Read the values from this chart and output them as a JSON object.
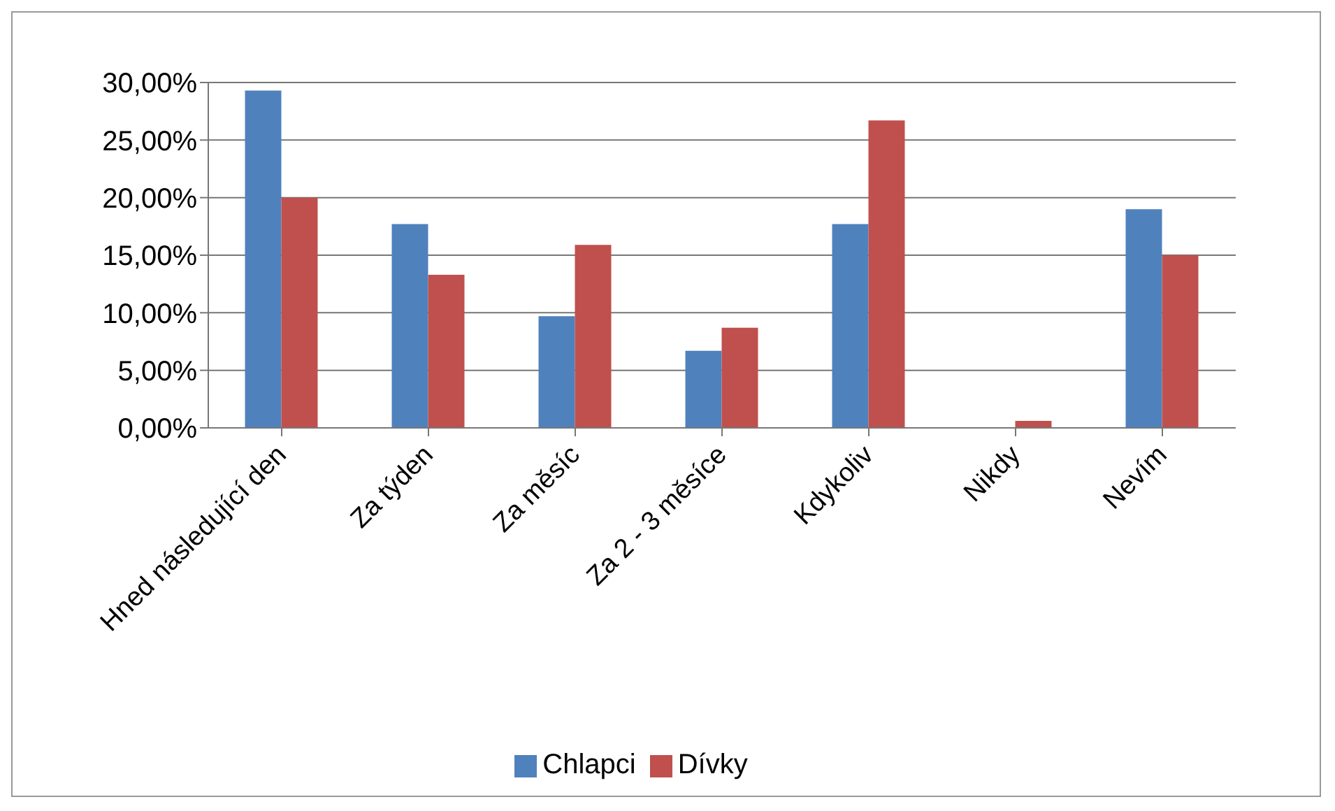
{
  "chart_data": {
    "type": "bar",
    "categories": [
      "Hned následující den",
      "Za týden",
      "Za měsíc",
      "Za 2 - 3 měsíce",
      "Kdykoliv",
      "Nikdy",
      "Nevím"
    ],
    "series": [
      {
        "name": "Chlapci",
        "color": "#4f81bd",
        "values": [
          29.3,
          17.7,
          9.7,
          6.7,
          17.7,
          0,
          19
        ]
      },
      {
        "name": "Dívky",
        "color": "#c0504d",
        "values": [
          20,
          13.3,
          15.9,
          8.7,
          26.7,
          0.6,
          15
        ]
      }
    ],
    "ylim": [
      0,
      30
    ],
    "yticks": [
      {
        "value": 0,
        "label": "0,00%"
      },
      {
        "value": 5,
        "label": "5,00%"
      },
      {
        "value": 10,
        "label": "10,00%"
      },
      {
        "value": 15,
        "label": "15,00%"
      },
      {
        "value": 20,
        "label": "20,00%"
      },
      {
        "value": 25,
        "label": "25,00%"
      },
      {
        "value": 30,
        "label": "30,00%"
      }
    ],
    "grid": "y",
    "legend": "bottom"
  }
}
